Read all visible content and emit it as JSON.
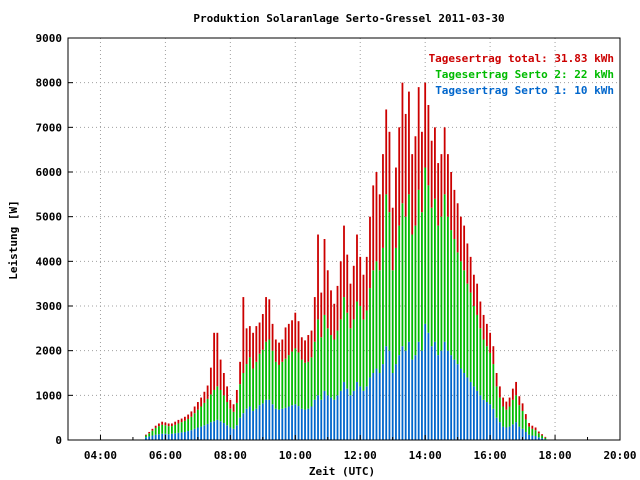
{
  "chart_data": {
    "type": "bar",
    "title": "Produktion Solaranlage Serto-Gressel 2011-03-30",
    "xlabel": "Zeit (UTC)",
    "ylabel": "Leistung [W]",
    "ylim": [
      0,
      9000
    ],
    "yticks": [
      0,
      1000,
      2000,
      3000,
      4000,
      5000,
      6000,
      7000,
      8000,
      9000
    ],
    "xlim": [
      3.0,
      20.0
    ],
    "xticks": [
      {
        "value": 4,
        "label": "04:00"
      },
      {
        "value": 6,
        "label": "06:00"
      },
      {
        "value": 8,
        "label": "08:00"
      },
      {
        "value": 10,
        "label": "10:00"
      },
      {
        "value": 12,
        "label": "12:00"
      },
      {
        "value": 14,
        "label": "14:00"
      },
      {
        "value": 16,
        "label": "16:00"
      },
      {
        "value": 18,
        "label": "18:00"
      },
      {
        "value": 20,
        "label": "20:00"
      }
    ],
    "grid": true,
    "legend_position": "top-right",
    "stacked": true,
    "series": [
      {
        "name": "Tagesertrag Serto 1: 10 kWh",
        "color": "#0066cc"
      },
      {
        "name": "Tagesertrag Serto 2: 22 kWh",
        "color": "#00bb00"
      },
      {
        "name": "Tagesertrag total: 31.83 kWh",
        "color": "#cc0000"
      }
    ],
    "points": [
      [
        5.4,
        60,
        40,
        20
      ],
      [
        5.5,
        80,
        70,
        30
      ],
      [
        5.6,
        100,
        110,
        40
      ],
      [
        5.7,
        120,
        150,
        50
      ],
      [
        5.8,
        130,
        180,
        60
      ],
      [
        5.9,
        140,
        200,
        70
      ],
      [
        6.0,
        140,
        190,
        60
      ],
      [
        6.1,
        130,
        180,
        60
      ],
      [
        6.2,
        140,
        170,
        60
      ],
      [
        6.3,
        150,
        190,
        70
      ],
      [
        6.4,
        160,
        210,
        80
      ],
      [
        6.5,
        170,
        230,
        80
      ],
      [
        6.6,
        180,
        250,
        90
      ],
      [
        6.7,
        200,
        270,
        100
      ],
      [
        6.8,
        220,
        300,
        120
      ],
      [
        6.9,
        250,
        350,
        150
      ],
      [
        7.0,
        280,
        400,
        170
      ],
      [
        7.1,
        300,
        450,
        200
      ],
      [
        7.2,
        330,
        500,
        250
      ],
      [
        7.3,
        360,
        560,
        300
      ],
      [
        7.4,
        400,
        620,
        600
      ],
      [
        7.5,
        420,
        700,
        1280
      ],
      [
        7.6,
        450,
        750,
        1200
      ],
      [
        7.7,
        420,
        700,
        680
      ],
      [
        7.8,
        380,
        620,
        500
      ],
      [
        7.9,
        330,
        520,
        350
      ],
      [
        8.0,
        280,
        420,
        200
      ],
      [
        8.1,
        250,
        380,
        170
      ],
      [
        8.2,
        330,
        500,
        290
      ],
      [
        8.3,
        500,
        750,
        500
      ],
      [
        8.4,
        600,
        900,
        1700
      ],
      [
        8.5,
        700,
        1000,
        800
      ],
      [
        8.6,
        750,
        1100,
        700
      ],
      [
        8.7,
        650,
        950,
        800
      ],
      [
        8.8,
        700,
        1050,
        800
      ],
      [
        8.9,
        780,
        1150,
        700
      ],
      [
        9.0,
        820,
        1200,
        800
      ],
      [
        9.1,
        900,
        1300,
        1000
      ],
      [
        9.2,
        900,
        1350,
        900
      ],
      [
        9.3,
        800,
        1200,
        600
      ],
      [
        9.4,
        700,
        1050,
        500
      ],
      [
        9.5,
        680,
        1000,
        500
      ],
      [
        9.6,
        700,
        1050,
        500
      ],
      [
        9.7,
        720,
        1100,
        700
      ],
      [
        9.8,
        750,
        1150,
        700
      ],
      [
        9.9,
        780,
        1200,
        700
      ],
      [
        10.0,
        800,
        1250,
        800
      ],
      [
        10.1,
        760,
        1200,
        700
      ],
      [
        10.2,
        700,
        1100,
        500
      ],
      [
        10.3,
        680,
        1050,
        500
      ],
      [
        10.4,
        700,
        1050,
        600
      ],
      [
        10.5,
        750,
        1100,
        600
      ],
      [
        10.6,
        900,
        1300,
        1000
      ],
      [
        10.7,
        1000,
        1700,
        1900
      ],
      [
        10.8,
        900,
        1400,
        1000
      ],
      [
        10.9,
        1100,
        1700,
        1700
      ],
      [
        11.0,
        1000,
        1500,
        1300
      ],
      [
        11.1,
        950,
        1400,
        1000
      ],
      [
        11.2,
        900,
        1350,
        800
      ],
      [
        11.3,
        1000,
        1450,
        1000
      ],
      [
        11.4,
        1100,
        1600,
        1300
      ],
      [
        11.5,
        1300,
        1900,
        1600
      ],
      [
        11.6,
        1150,
        1700,
        1300
      ],
      [
        11.7,
        1000,
        1500,
        1000
      ],
      [
        11.8,
        1100,
        1600,
        1200
      ],
      [
        11.9,
        1300,
        1800,
        1500
      ],
      [
        12.0,
        1200,
        1800,
        1100
      ],
      [
        12.1,
        1100,
        1600,
        1000
      ],
      [
        12.2,
        1200,
        1700,
        1200
      ],
      [
        12.3,
        1400,
        2000,
        1600
      ],
      [
        12.4,
        1500,
        2300,
        1900
      ],
      [
        12.5,
        1600,
        2400,
        2000
      ],
      [
        12.6,
        1500,
        2300,
        1700
      ],
      [
        12.7,
        1700,
        2600,
        2100
      ],
      [
        12.8,
        2100,
        3400,
        1900
      ],
      [
        12.9,
        2000,
        3100,
        1800
      ],
      [
        13.0,
        1500,
        2300,
        1400
      ],
      [
        13.1,
        1700,
        2600,
        1800
      ],
      [
        13.2,
        1900,
        2900,
        2200
      ],
      [
        13.3,
        2100,
        3200,
        2700
      ],
      [
        13.4,
        2000,
        3000,
        2300
      ],
      [
        13.5,
        2200,
        3300,
        2300
      ],
      [
        13.6,
        1800,
        2800,
        1800
      ],
      [
        13.7,
        1900,
        2900,
        2000
      ],
      [
        13.8,
        2200,
        3400,
        2300
      ],
      [
        13.9,
        2000,
        3100,
        1800
      ],
      [
        14.0,
        2600,
        3500,
        1900
      ],
      [
        14.1,
        2400,
        3300,
        1800
      ],
      [
        14.2,
        2100,
        3100,
        1500
      ],
      [
        14.3,
        2200,
        3200,
        1600
      ],
      [
        14.4,
        1900,
        2900,
        1400
      ],
      [
        14.5,
        2000,
        3000,
        1400
      ],
      [
        14.6,
        2200,
        3300,
        1500
      ],
      [
        14.7,
        2000,
        3000,
        1400
      ],
      [
        14.8,
        1900,
        2800,
        1300
      ],
      [
        14.9,
        1800,
        2700,
        1100
      ],
      [
        15.0,
        1700,
        2500,
        1100
      ],
      [
        15.1,
        1600,
        2400,
        1000
      ],
      [
        15.2,
        1500,
        2300,
        1000
      ],
      [
        15.3,
        1400,
        2100,
        900
      ],
      [
        15.4,
        1300,
        2000,
        800
      ],
      [
        15.5,
        1200,
        1800,
        700
      ],
      [
        15.6,
        1100,
        1700,
        700
      ],
      [
        15.7,
        1000,
        1500,
        600
      ],
      [
        15.8,
        900,
        1350,
        550
      ],
      [
        15.9,
        850,
        1250,
        500
      ],
      [
        16.0,
        800,
        1150,
        450
      ],
      [
        16.1,
        700,
        1000,
        400
      ],
      [
        16.2,
        500,
        700,
        300
      ],
      [
        16.3,
        400,
        550,
        250
      ],
      [
        16.4,
        300,
        450,
        200
      ],
      [
        16.5,
        280,
        400,
        180
      ],
      [
        16.6,
        300,
        450,
        200
      ],
      [
        16.7,
        350,
        550,
        250
      ],
      [
        16.8,
        400,
        600,
        300
      ],
      [
        16.9,
        300,
        480,
        200
      ],
      [
        17.0,
        250,
        400,
        170
      ],
      [
        17.1,
        180,
        280,
        120
      ],
      [
        17.2,
        120,
        180,
        80
      ],
      [
        17.3,
        100,
        150,
        70
      ],
      [
        17.4,
        90,
        130,
        60
      ],
      [
        17.5,
        60,
        90,
        40
      ],
      [
        17.6,
        40,
        60,
        30
      ],
      [
        17.7,
        20,
        30,
        20
      ]
    ]
  }
}
